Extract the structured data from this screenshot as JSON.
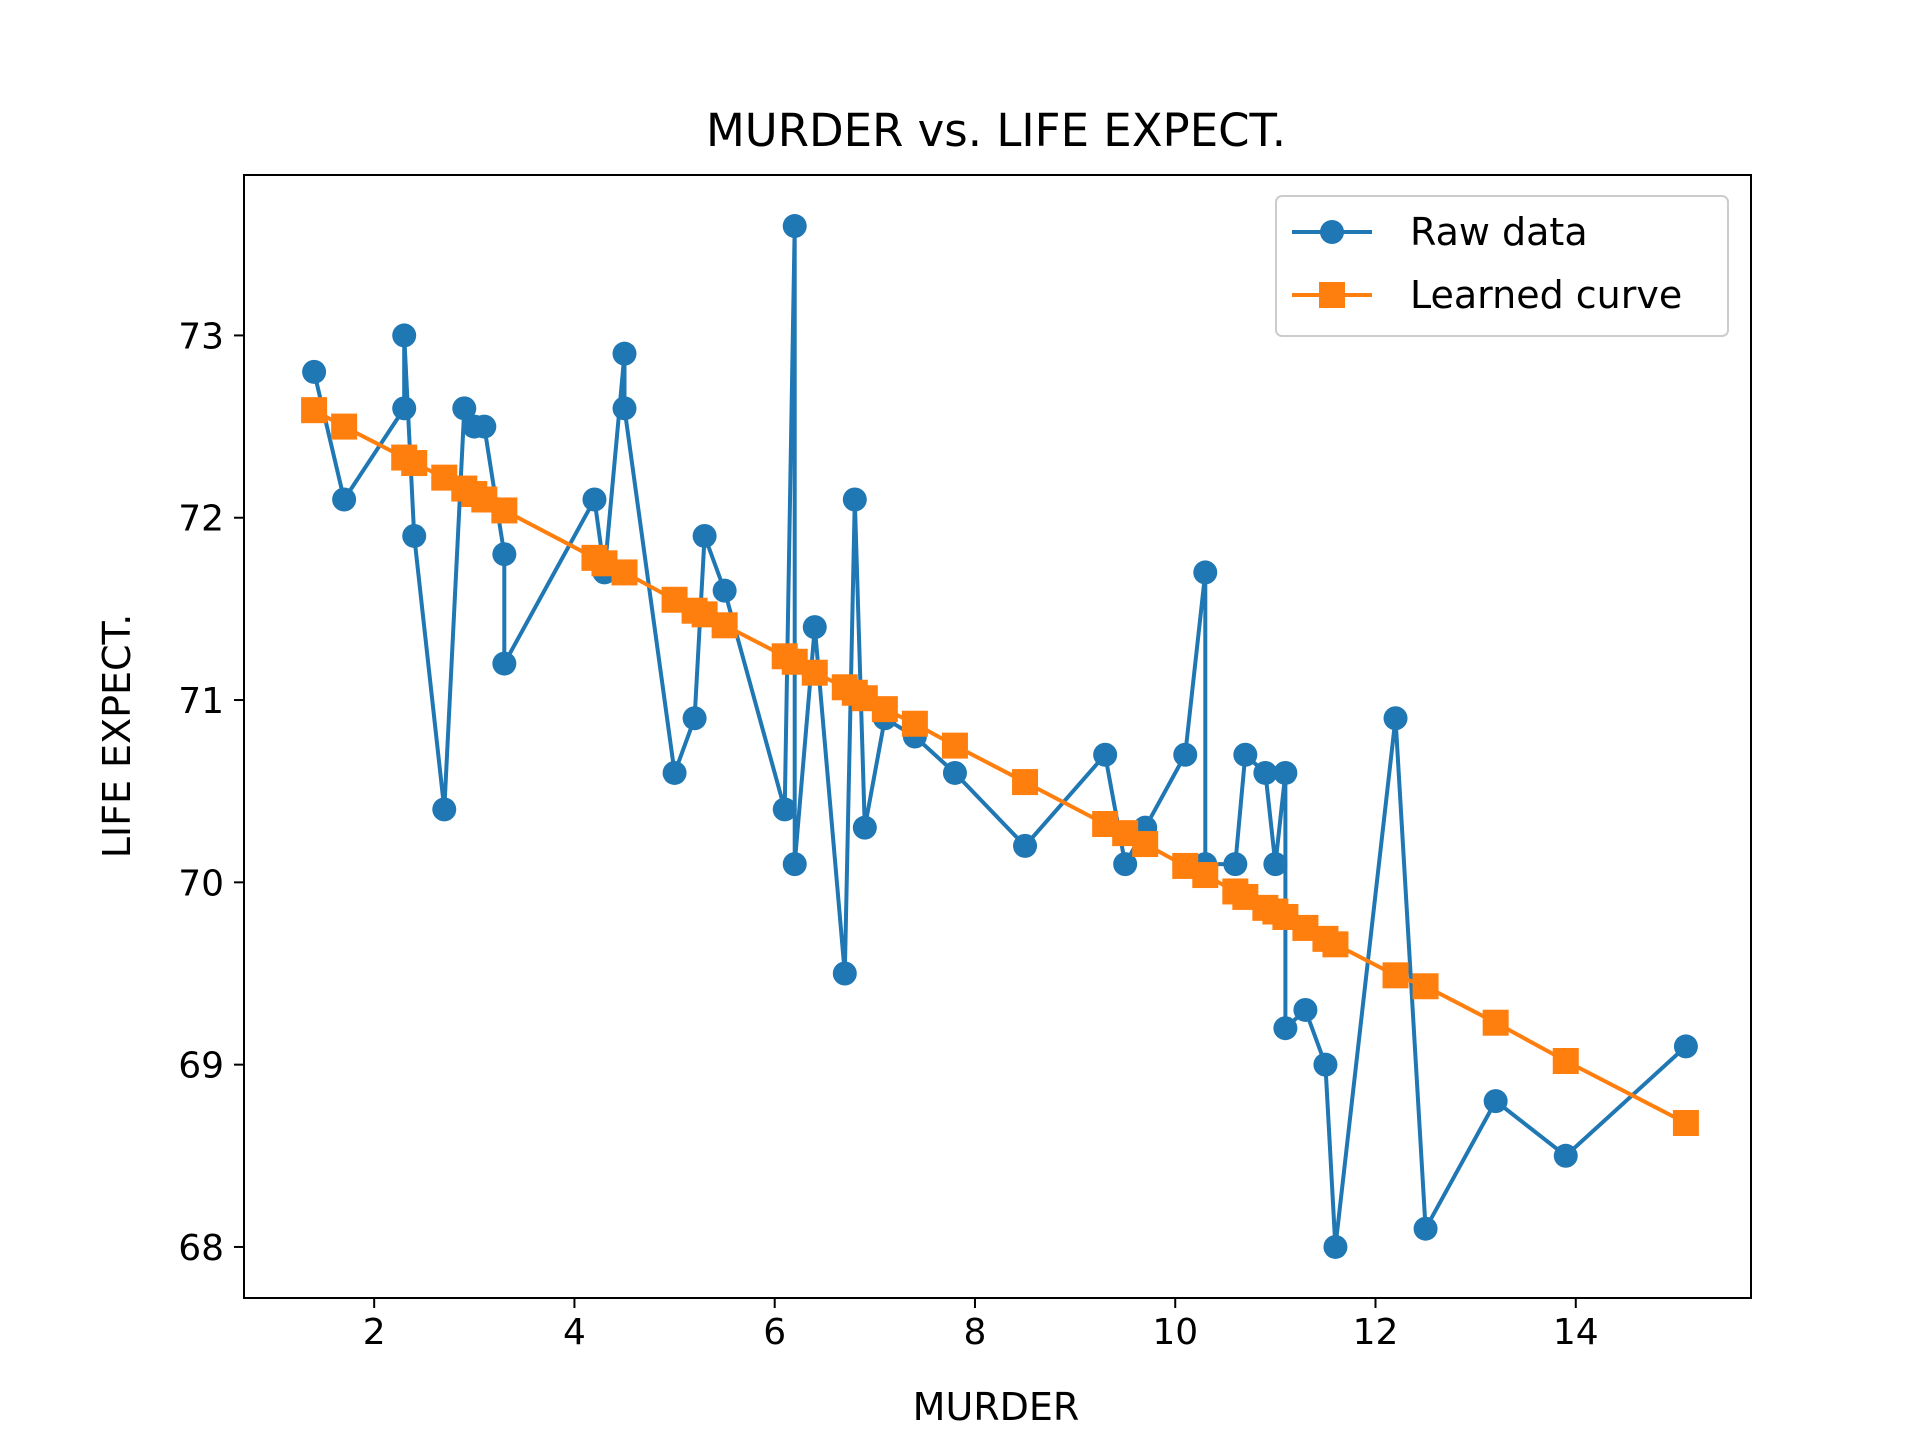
{
  "chart_data": {
    "type": "line",
    "title": "MURDER vs. LIFE EXPECT.",
    "xlabel": "MURDER",
    "ylabel": "LIFE EXPECT.",
    "xlim": [
      0.7,
      15.75
    ],
    "ylim": [
      67.72,
      73.88
    ],
    "xticks": [
      2,
      4,
      6,
      8,
      10,
      12,
      14
    ],
    "yticks": [
      68,
      69,
      70,
      71,
      72,
      73
    ],
    "grid": false,
    "legend_position": "top-right",
    "series": [
      {
        "name": "Raw data",
        "color": "#1f77b4",
        "marker": "circle",
        "x": [
          1.4,
          1.7,
          2.3,
          2.3,
          2.4,
          2.7,
          2.9,
          3.0,
          3.1,
          3.3,
          3.3,
          4.2,
          4.3,
          4.5,
          4.5,
          5.0,
          5.2,
          5.3,
          5.5,
          6.1,
          6.2,
          6.2,
          6.4,
          6.7,
          6.8,
          6.9,
          7.1,
          7.4,
          7.8,
          8.5,
          9.3,
          9.5,
          9.7,
          10.1,
          10.3,
          10.3,
          10.6,
          10.7,
          10.9,
          11.0,
          11.1,
          11.1,
          11.3,
          11.5,
          11.6,
          12.2,
          12.5,
          13.2,
          13.9,
          15.1
        ],
        "y": [
          72.8,
          72.1,
          72.6,
          73.0,
          71.9,
          70.4,
          72.6,
          72.5,
          72.5,
          71.8,
          71.2,
          72.1,
          71.7,
          72.9,
          72.6,
          70.6,
          70.9,
          71.9,
          71.6,
          70.4,
          73.6,
          70.1,
          71.4,
          69.5,
          72.1,
          70.3,
          70.9,
          70.8,
          70.6,
          70.2,
          70.7,
          70.1,
          70.3,
          70.7,
          71.7,
          70.1,
          70.1,
          70.7,
          70.6,
          70.1,
          70.6,
          69.2,
          69.3,
          69.0,
          68.0,
          70.9,
          68.1,
          68.8,
          68.5,
          69.1
        ]
      },
      {
        "name": "Learned curve",
        "color": "#ff7f0e",
        "marker": "square",
        "x": [
          1.4,
          1.7,
          2.3,
          2.4,
          2.7,
          2.9,
          3.0,
          3.1,
          3.3,
          4.2,
          4.3,
          4.5,
          5.0,
          5.2,
          5.3,
          5.5,
          6.1,
          6.2,
          6.4,
          6.7,
          6.8,
          6.9,
          7.1,
          7.4,
          7.8,
          8.5,
          9.3,
          9.5,
          9.7,
          10.1,
          10.3,
          10.6,
          10.7,
          10.9,
          11.0,
          11.1,
          11.3,
          11.5,
          11.6,
          12.2,
          12.5,
          13.2,
          13.9,
          15.1
        ],
        "y": [
          72.59,
          72.5,
          72.33,
          72.3,
          72.22,
          72.16,
          72.13,
          72.1,
          72.04,
          71.78,
          71.75,
          71.7,
          71.55,
          71.49,
          71.47,
          71.41,
          71.24,
          71.21,
          71.15,
          71.07,
          71.04,
          71.01,
          70.95,
          70.87,
          70.75,
          70.55,
          70.32,
          70.27,
          70.21,
          70.09,
          70.04,
          69.95,
          69.92,
          69.86,
          69.84,
          69.81,
          69.75,
          69.69,
          69.66,
          69.49,
          69.43,
          69.23,
          69.02,
          68.68
        ]
      }
    ]
  }
}
